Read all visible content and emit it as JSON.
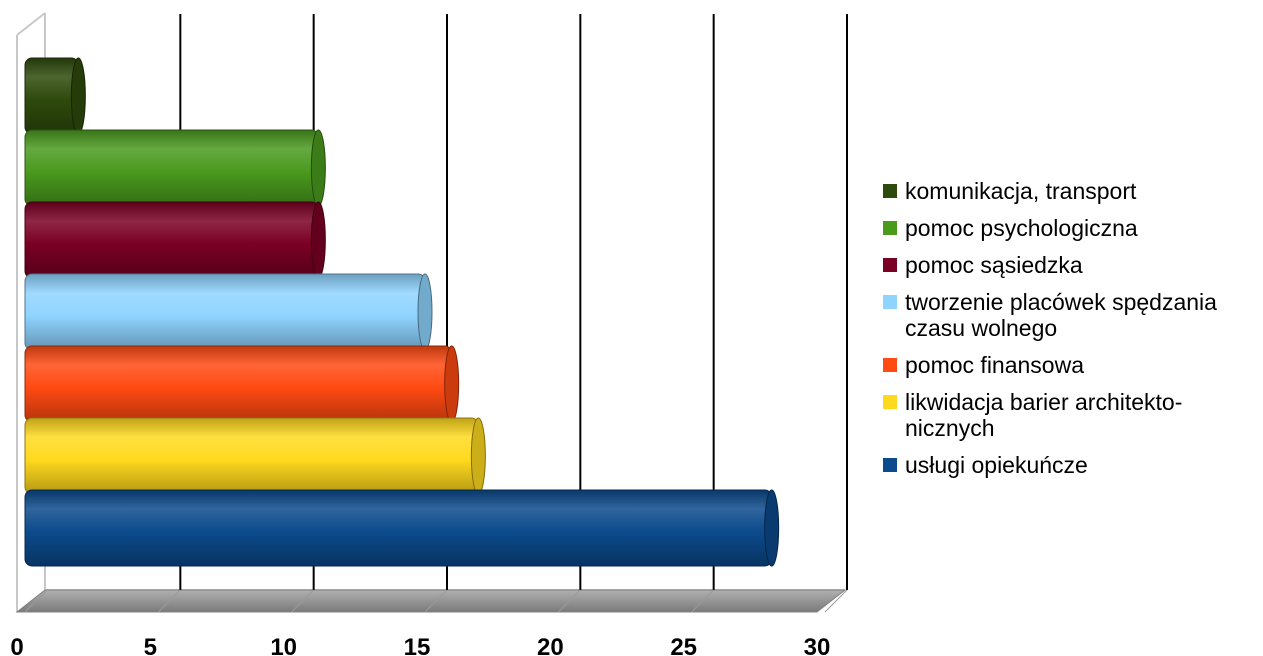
{
  "chart_data": {
    "type": "bar",
    "orientation": "horizontal",
    "style": "3d-cylinder",
    "categories": [
      "usługi opiekuńcze",
      "likwidacja barier architekto-nicznych",
      "pomoc finansowa",
      "tworzenie placówek spędzania czasu wolnego",
      "pomoc sąsiedzka",
      "pomoc psychologiczna",
      "komunikacja, transport"
    ],
    "values": [
      28,
      17,
      16,
      15,
      11,
      11,
      2
    ],
    "colors": [
      "#0b4a8c",
      "#ffd91e",
      "#ff4a12",
      "#8fd4ff",
      "#7a0024",
      "#4a9a1e",
      "#2e4a0c"
    ],
    "xlim": [
      0,
      30
    ],
    "xticks": [
      "0",
      "5",
      "10",
      "15",
      "20",
      "25",
      "30"
    ],
    "grid": true,
    "legend_position": "right",
    "legend": [
      {
        "label": "komunikacja, transport",
        "color": "#2e4a0c"
      },
      {
        "label": "pomoc psychologiczna",
        "color": "#4a9a1e"
      },
      {
        "label": "pomoc sąsiedzka",
        "color": "#7a0024"
      },
      {
        "label": "tworzenie placówek spędzania czasu wolnego",
        "color": "#8fd4ff"
      },
      {
        "label": "pomoc finansowa",
        "color": "#ff4a12"
      },
      {
        "label": "likwidacja barier architekto-nicznych",
        "color": "#ffd91e"
      },
      {
        "label": "usługi opiekuńcze",
        "color": "#0b4a8c"
      }
    ]
  }
}
